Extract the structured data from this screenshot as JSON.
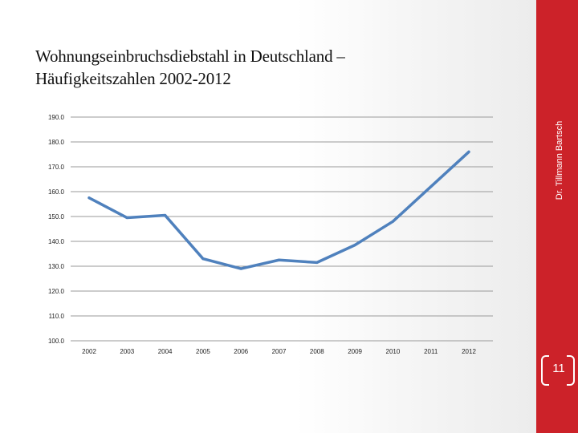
{
  "slide": {
    "title_line1": "Wohnungseinbruchsdiebstahl in Deutschland –",
    "title_line2": "Häufigkeitszahlen 2002-2012",
    "side_label": "Dr. Tillmann Bartsch",
    "page_number": "11"
  },
  "colors": {
    "accent_bar": "#cc2229",
    "line": "#4f81bd",
    "gridline": "#9a9a9a"
  },
  "chart_data": {
    "type": "line",
    "title": "",
    "xlabel": "",
    "ylabel": "",
    "categories": [
      "2002",
      "2003",
      "2004",
      "2005",
      "2006",
      "2007",
      "2008",
      "2009",
      "2010",
      "2011",
      "2012"
    ],
    "series": [
      {
        "values": [
          157.5,
          149.5,
          150.5,
          133.0,
          129.0,
          132.5,
          131.5,
          138.5,
          148.0,
          162.0,
          176.0
        ]
      }
    ],
    "yticks": [
      "100.0",
      "110.0",
      "120.0",
      "130.0",
      "140.0",
      "150.0",
      "160.0",
      "170.0",
      "180.0",
      "190.0"
    ],
    "ylim": [
      100,
      190
    ],
    "grid": true,
    "legend": "none"
  }
}
